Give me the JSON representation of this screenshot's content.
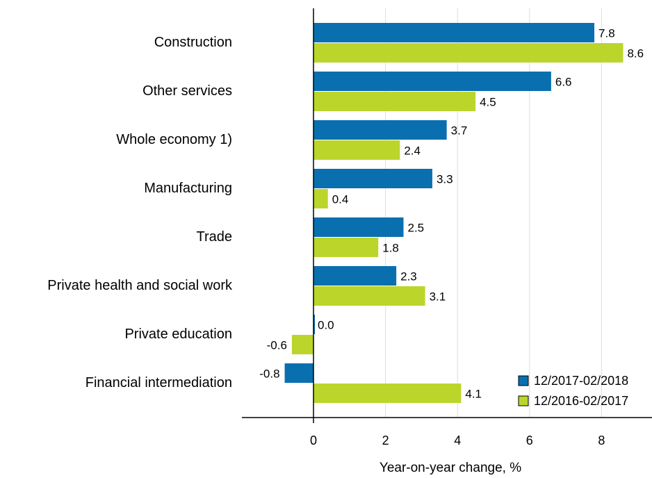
{
  "chart_data": {
    "type": "bar",
    "orientation": "horizontal",
    "categories": [
      "Construction",
      "Other services",
      "Whole economy 1)",
      "Manufacturing",
      "Trade",
      "Private health and social work",
      "Private education",
      "Financial intermediation"
    ],
    "series": [
      {
        "name": "12/2017-02/2018",
        "color": "#0a6faf",
        "values": [
          7.8,
          6.6,
          3.7,
          3.3,
          2.5,
          2.3,
          0.0,
          -0.8
        ],
        "labels": [
          "7.8",
          "6.6",
          "3.7",
          "3.3",
          "2.5",
          "2.3",
          "0.0",
          "-0.8"
        ]
      },
      {
        "name": "12/2016-02/2017",
        "color": "#bcd52b",
        "values": [
          8.6,
          4.5,
          2.4,
          0.4,
          1.8,
          3.1,
          -0.6,
          4.1
        ],
        "labels": [
          "8.6",
          "4.5",
          "2.4",
          "0.4",
          "1.8",
          "3.1",
          "-0.6",
          "4.1"
        ]
      }
    ],
    "xlabel": "Year-on-year change, %",
    "xticks": [
      0,
      2,
      4,
      6,
      8
    ],
    "xtick_labels": [
      "0",
      "2",
      "4",
      "6",
      "8"
    ],
    "xlim": [
      -2.0,
      9.4
    ],
    "grid": "vertical",
    "legend_position": "bottom-right"
  }
}
